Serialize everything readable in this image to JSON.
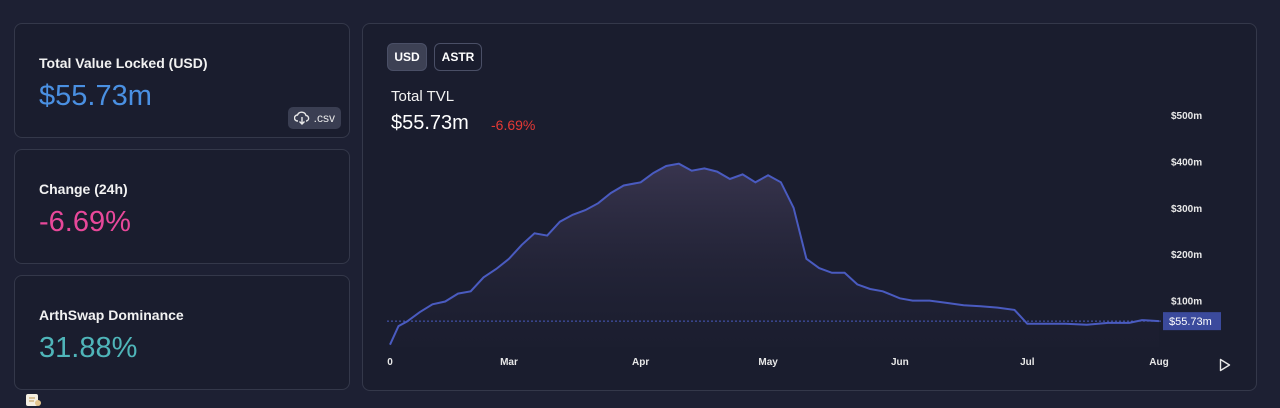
{
  "cards": [
    {
      "label": "Total Value Locked (USD)",
      "value": "$55.73m",
      "value_color": "#4a90e2"
    },
    {
      "label": "Change (24h)",
      "value": "-6.69%",
      "value_color": "#e8489a"
    },
    {
      "label": "ArthSwap Dominance",
      "value": "31.88%",
      "value_color": "#4fb5b9"
    }
  ],
  "csv_button": {
    "label": ".csv",
    "icon": "cloud-download-icon"
  },
  "toggles": [
    "USD",
    "ASTR"
  ],
  "chart_header": {
    "title": "Total TVL",
    "value": "$55.73m",
    "change": "-6.69%",
    "change_color": "#e53935"
  },
  "play_icon": "play-icon",
  "chart_data": {
    "type": "area",
    "title": "Total TVL",
    "x": [
      "2022-02-01",
      "2022-02-03",
      "2022-02-05",
      "2022-02-08",
      "2022-02-11",
      "2022-02-14",
      "2022-02-17",
      "2022-02-20",
      "2022-02-23",
      "2022-02-26",
      "2022-03-01",
      "2022-03-04",
      "2022-03-07",
      "2022-03-10",
      "2022-03-13",
      "2022-03-16",
      "2022-03-19",
      "2022-03-22",
      "2022-03-25",
      "2022-03-28",
      "2022-04-01",
      "2022-04-04",
      "2022-04-07",
      "2022-04-10",
      "2022-04-13",
      "2022-04-16",
      "2022-04-19",
      "2022-04-22",
      "2022-04-25",
      "2022-04-28",
      "2022-05-01",
      "2022-05-04",
      "2022-05-07",
      "2022-05-10",
      "2022-05-13",
      "2022-05-16",
      "2022-05-19",
      "2022-05-22",
      "2022-05-25",
      "2022-05-28",
      "2022-06-01",
      "2022-06-04",
      "2022-06-08",
      "2022-06-12",
      "2022-06-16",
      "2022-06-20",
      "2022-06-24",
      "2022-06-28",
      "2022-07-01",
      "2022-07-05",
      "2022-07-10",
      "2022-07-15",
      "2022-07-20",
      "2022-07-25",
      "2022-07-28",
      "2022-08-01"
    ],
    "series": [
      {
        "values": [
          5,
          45,
          55,
          75,
          92,
          98,
          115,
          120,
          150,
          168,
          190,
          220,
          245,
          240,
          270,
          285,
          295,
          310,
          332,
          348,
          355,
          375,
          390,
          395,
          380,
          385,
          378,
          362,
          372,
          355,
          370,
          355,
          300,
          190,
          170,
          160,
          160,
          135,
          125,
          120,
          105,
          100,
          100,
          95,
          90,
          88,
          85,
          80,
          50,
          50,
          50,
          48,
          52,
          52,
          58,
          55.73
        ]
      }
    ],
    "x_ticks": [
      "0",
      "Mar",
      "Apr",
      "May",
      "Jun",
      "Jul",
      "Aug"
    ],
    "y_ticks": [
      "$100m",
      "$200m",
      "$300m",
      "$400m",
      "$500m"
    ],
    "ylim": [
      0,
      500
    ],
    "current_value_label": "$55.73m",
    "line_color": "#4a5bc0",
    "grid": false
  }
}
